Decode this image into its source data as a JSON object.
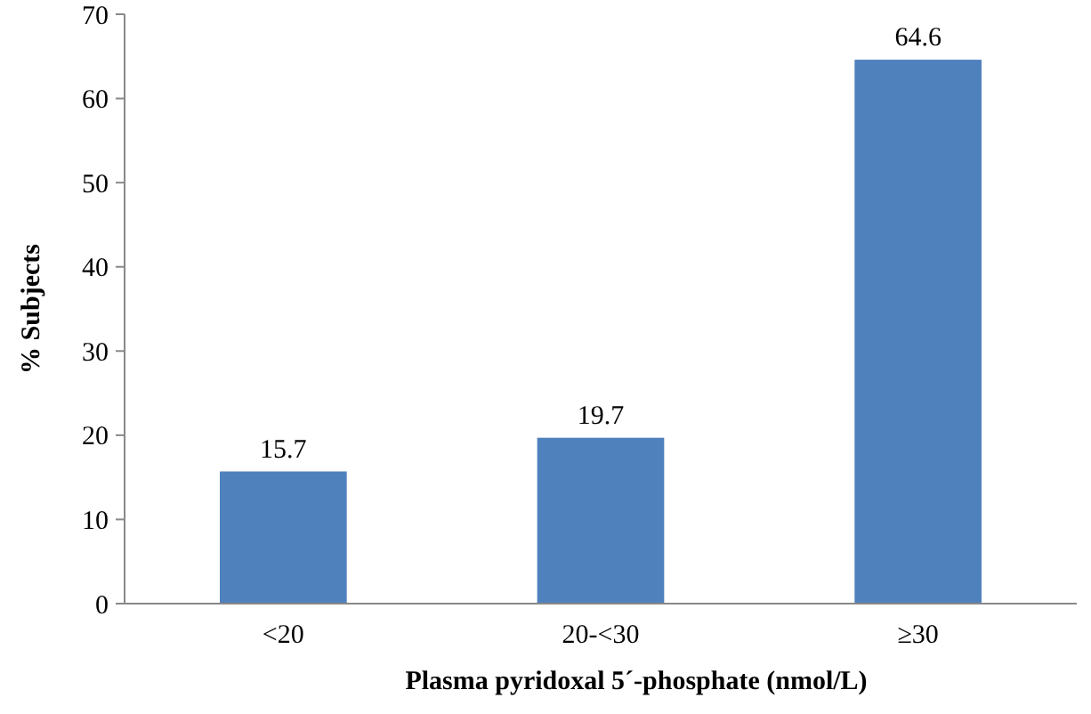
{
  "chart_data": {
    "type": "bar",
    "xlabel": "Plasma pyridoxal 5´-phosphate (nmol/L)",
    "ylabel": "% Subjects",
    "categories": [
      "<20",
      "20-<30",
      "≥30"
    ],
    "values": [
      15.7,
      19.7,
      64.6
    ],
    "color": "#4f81bd",
    "data_labels": true,
    "ylim": [
      0,
      70
    ],
    "yticks": [
      0,
      10,
      20,
      30,
      40,
      50,
      60,
      70
    ],
    "grid": false
  }
}
